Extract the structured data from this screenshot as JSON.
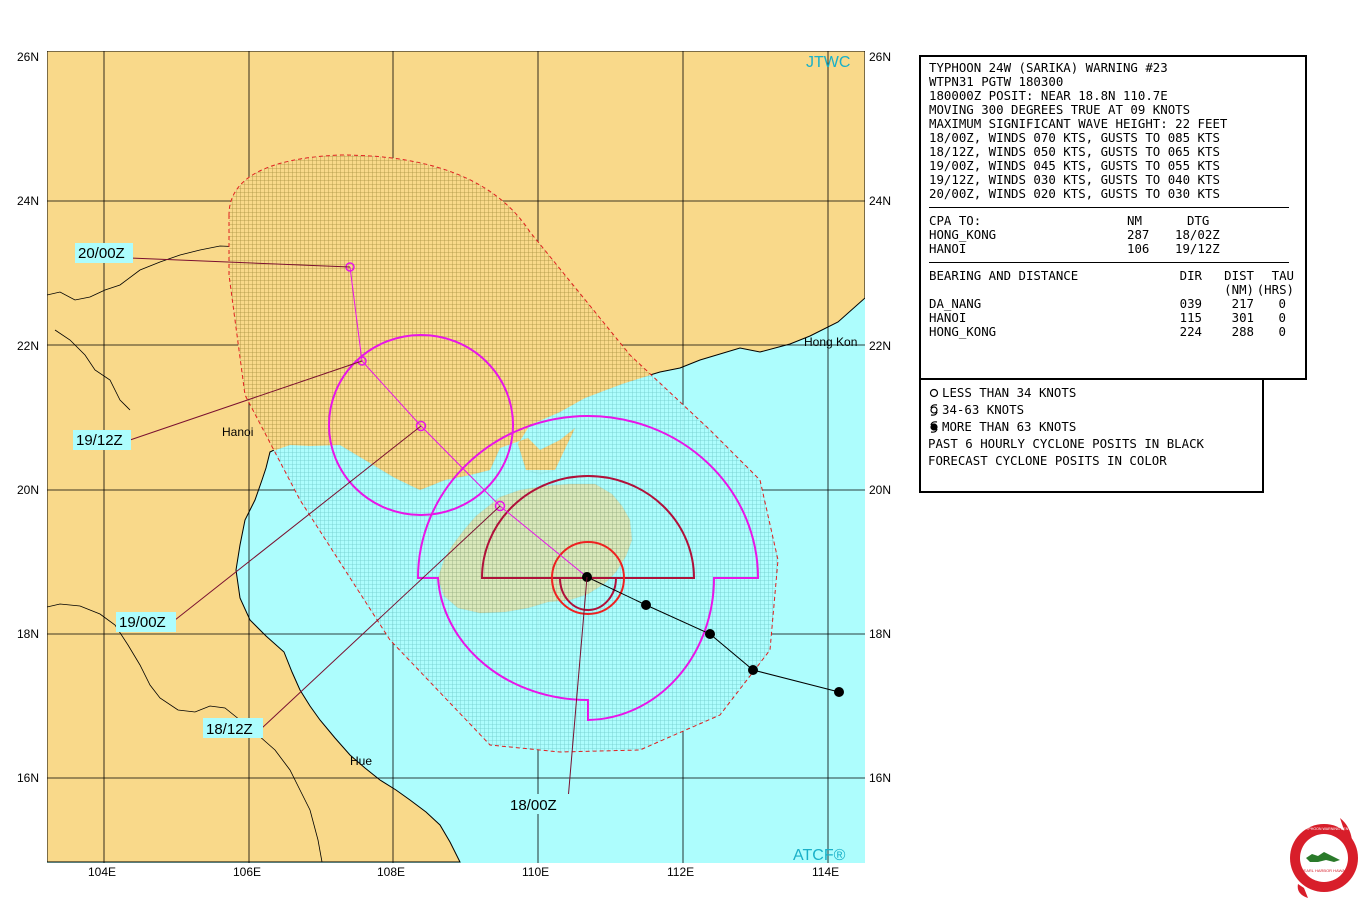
{
  "map": {
    "lat_labels": [
      "26N",
      "24N",
      "22N",
      "20N",
      "18N",
      "16N"
    ],
    "lon_labels": [
      "104E",
      "106E",
      "108E",
      "110E",
      "112E",
      "114E"
    ],
    "source_top": "JTWC",
    "source_bottom": "ATCF®",
    "cities": {
      "hanoi": "Hanoi",
      "hue": "Hue",
      "hong_kong": "Hong Kon"
    },
    "time_labels": [
      "20/00Z",
      "19/12Z",
      "19/00Z",
      "18/12Z",
      "18/00Z"
    ],
    "colors": {
      "land": "#f9d98a",
      "sea": "#adfdfd",
      "danger_land": "#c9b155",
      "danger_sea": "#8ad8d8",
      "wind_34": "#e815e8",
      "wind_50": "#b0103a",
      "wind_64": "#ee2020",
      "track": "#000000",
      "label_box": "#adfdfd",
      "tag_text": "#19b0c8"
    },
    "past_track": [
      {
        "lat": 17.2,
        "lon": 114.2
      },
      {
        "lat": 17.5,
        "lon": 113.0
      },
      {
        "lat": 18.0,
        "lon": 112.4
      },
      {
        "lat": 18.4,
        "lon": 111.5
      },
      {
        "lat": 18.8,
        "lon": 110.7
      }
    ],
    "forecast_track": [
      {
        "tau": "18/12Z",
        "lat": 19.8,
        "lon": 109.6
      },
      {
        "tau": "19/00Z",
        "lat": 20.9,
        "lon": 108.4
      },
      {
        "tau": "19/12Z",
        "lat": 21.8,
        "lon": 107.5
      },
      {
        "tau": "20/00Z",
        "lat": 23.1,
        "lon": 107.4
      }
    ]
  },
  "warning": {
    "header_lines": [
      "TYPHOON 24W (SARIKA) WARNING #23",
      "WTPN31 PGTW 180300",
      "180000Z POSIT: NEAR 18.8N 110.7E",
      "MOVING 300 DEGREES TRUE AT 09 KNOTS",
      "MAXIMUM SIGNIFICANT WAVE HEIGHT: 22 FEET",
      "18/00Z, WINDS 070 KTS, GUSTS TO 085 KTS",
      "18/12Z, WINDS 050 KTS, GUSTS TO 065 KTS",
      "19/00Z, WINDS 045 KTS, GUSTS TO 055 KTS",
      "19/12Z, WINDS 030 KTS, GUSTS TO 040 KTS",
      "20/00Z, WINDS 020 KTS, GUSTS TO 030 KTS"
    ],
    "cpa": {
      "headers": [
        "CPA TO:",
        "NM",
        "DTG"
      ],
      "rows": [
        [
          "HONG_KONG",
          "287",
          "18/02Z"
        ],
        [
          "HANOI",
          "106",
          "19/12Z"
        ]
      ]
    },
    "bearing": {
      "headers": [
        "BEARING AND DISTANCE",
        "DIR",
        "DIST",
        "TAU"
      ],
      "subheaders": [
        "",
        "",
        "(NM)",
        "(HRS)"
      ],
      "rows": [
        [
          "DA_NANG",
          "039",
          "217",
          "0"
        ],
        [
          "HANOI",
          "115",
          "301",
          "0"
        ],
        [
          "HONG_KONG",
          "224",
          "288",
          "0"
        ]
      ]
    }
  },
  "legend": {
    "items": [
      {
        "icon": "open-circle-icon",
        "label": "LESS THAN 34 KNOTS"
      },
      {
        "icon": "tropical-storm-icon",
        "label": "34-63 KNOTS"
      },
      {
        "icon": "typhoon-icon",
        "label": "MORE THAN 63 KNOTS"
      }
    ],
    "notes": [
      "PAST 6 HOURLY CYCLONE POSITS IN BLACK",
      "FORECAST CYCLONE POSITS IN COLOR"
    ]
  },
  "logo": {
    "icon": "jtwc-seal-icon",
    "text": "JOINT TYPHOON WARNING CENTER",
    "subtext": "PEARL HARBOR HAWAII"
  }
}
